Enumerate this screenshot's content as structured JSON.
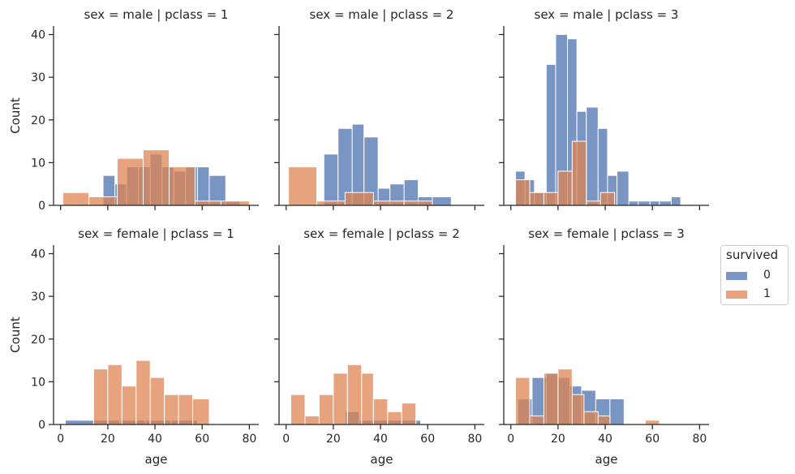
{
  "chart_data": {
    "type": "bar",
    "kind": "faceted-histogram",
    "xlabel": "age",
    "ylabel": "Count",
    "xlim": [
      -3,
      84
    ],
    "ylim": [
      0,
      42
    ],
    "xticks": [
      0,
      20,
      40,
      60,
      80
    ],
    "yticks": [
      0,
      10,
      20,
      30,
      40
    ],
    "legend": {
      "title": "survived",
      "placement": "right",
      "entries": [
        {
          "label": "0",
          "color": "#4c72b0"
        },
        {
          "label": "1",
          "color": "#dd8452"
        }
      ]
    },
    "panels": [
      {
        "title": "sex = male | pclass = 1",
        "series": [
          {
            "name": "0",
            "bins": [
              [
                18,
                23,
                7
              ],
              [
                23,
                28,
                5
              ],
              [
                28,
                33,
                9
              ],
              [
                33,
                38,
                9
              ],
              [
                38,
                43,
                12
              ],
              [
                43,
                48,
                9
              ],
              [
                48,
                53,
                8
              ],
              [
                53,
                58,
                9
              ],
              [
                58,
                63,
                9
              ],
              [
                63,
                70,
                7
              ],
              [
                70,
                76,
                1
              ]
            ]
          },
          {
            "name": "1",
            "bins": [
              [
                1,
                12,
                3
              ],
              [
                12,
                24,
                2
              ],
              [
                24,
                35,
                11
              ],
              [
                35,
                46,
                13
              ],
              [
                46,
                57,
                9
              ],
              [
                57,
                68,
                1
              ],
              [
                68,
                80,
                1
              ]
            ]
          }
        ]
      },
      {
        "title": "sex = male | pclass = 2",
        "series": [
          {
            "name": "0",
            "bins": [
              [
                16,
                22,
                12
              ],
              [
                22,
                28,
                18
              ],
              [
                28,
                33,
                19
              ],
              [
                33,
                39,
                16
              ],
              [
                39,
                44,
                4
              ],
              [
                44,
                50,
                5
              ],
              [
                50,
                56,
                6
              ],
              [
                56,
                62,
                2
              ],
              [
                62,
                70,
                2
              ]
            ]
          },
          {
            "name": "1",
            "bins": [
              [
                1,
                13,
                9
              ],
              [
                13,
                25,
                1
              ],
              [
                25,
                37,
                3
              ],
              [
                37,
                50,
                1
              ],
              [
                50,
                62,
                1
              ]
            ]
          }
        ]
      },
      {
        "title": "sex = male | pclass = 3",
        "series": [
          {
            "name": "0",
            "bins": [
              [
                2,
                6,
                8
              ],
              [
                6,
                10,
                6
              ],
              [
                10,
                15,
                3
              ],
              [
                15,
                19,
                33
              ],
              [
                19,
                24,
                40
              ],
              [
                24,
                28,
                39
              ],
              [
                28,
                32,
                22
              ],
              [
                32,
                37,
                23
              ],
              [
                37,
                41,
                18
              ],
              [
                41,
                45,
                7
              ],
              [
                45,
                50,
                8
              ],
              [
                50,
                54,
                1
              ],
              [
                54,
                59,
                1
              ],
              [
                59,
                63,
                1
              ],
              [
                63,
                68,
                1
              ],
              [
                68,
                72,
                2
              ]
            ]
          },
          {
            "name": "1",
            "bins": [
              [
                2,
                8,
                6
              ],
              [
                8,
                14,
                3
              ],
              [
                14,
                20,
                3
              ],
              [
                20,
                26,
                8
              ],
              [
                26,
                32,
                15
              ],
              [
                32,
                38,
                1
              ],
              [
                38,
                44,
                3
              ],
              [
                44,
                50,
                0
              ]
            ]
          }
        ]
      },
      {
        "title": "sex = female | pclass = 1",
        "series": [
          {
            "name": "0",
            "bins": [
              [
                2,
                14,
                1
              ],
              [
                14,
                25,
                1
              ],
              [
                25,
                36,
                1
              ],
              [
                36,
                47,
                1
              ],
              [
                47,
                58,
                1
              ]
            ]
          },
          {
            "name": "1",
            "bins": [
              [
                14,
                20,
                13
              ],
              [
                20,
                26,
                14
              ],
              [
                26,
                32,
                9
              ],
              [
                32,
                38,
                15
              ],
              [
                38,
                44,
                11
              ],
              [
                44,
                50,
                7
              ],
              [
                50,
                56,
                7
              ],
              [
                56,
                63,
                6
              ]
            ]
          }
        ]
      },
      {
        "title": "sex = female | pclass = 2",
        "series": [
          {
            "name": "0",
            "bins": [
              [
                25,
                31,
                3
              ],
              [
                31,
                37,
                1
              ],
              [
                37,
                43,
                1
              ],
              [
                43,
                49,
                1
              ],
              [
                49,
                55,
                1
              ],
              [
                55,
                57,
                1
              ]
            ]
          },
          {
            "name": "1",
            "bins": [
              [
                2,
                8,
                7
              ],
              [
                8,
                14,
                2
              ],
              [
                14,
                20,
                7
              ],
              [
                20,
                26,
                12
              ],
              [
                26,
                32,
                14
              ],
              [
                32,
                37,
                12
              ],
              [
                37,
                43,
                6
              ],
              [
                43,
                49,
                3
              ],
              [
                49,
                55,
                5
              ]
            ]
          }
        ]
      },
      {
        "title": "sex = female | pclass = 3",
        "series": [
          {
            "name": "0",
            "bins": [
              [
                3,
                9,
                6
              ],
              [
                9,
                15,
                11
              ],
              [
                15,
                20,
                12
              ],
              [
                20,
                25,
                11
              ],
              [
                25,
                30,
                9
              ],
              [
                30,
                36,
                8
              ],
              [
                36,
                42,
                6
              ],
              [
                42,
                48,
                6
              ]
            ]
          },
          {
            "name": "1",
            "bins": [
              [
                2,
                8,
                11
              ],
              [
                8,
                14,
                2
              ],
              [
                14,
                20,
                12
              ],
              [
                20,
                26,
                13
              ],
              [
                26,
                31,
                7
              ],
              [
                31,
                37,
                3
              ],
              [
                37,
                42,
                2
              ],
              [
                57,
                63,
                1
              ]
            ]
          }
        ]
      }
    ]
  }
}
